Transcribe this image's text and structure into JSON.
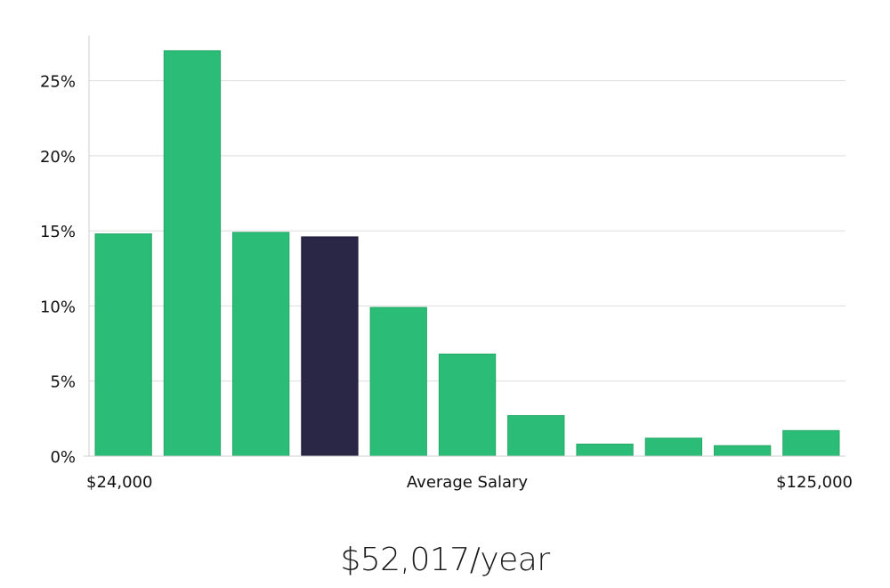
{
  "chart_data": {
    "type": "bar",
    "title": "",
    "xlabel": "Average Salary",
    "ylabel": "",
    "x_start_label": "$24,000",
    "x_end_label": "$125,000",
    "ylim": [
      0,
      28
    ],
    "yticks": [
      0,
      5,
      10,
      15,
      20,
      25
    ],
    "ytick_labels": [
      "0%",
      "5%",
      "10%",
      "15%",
      "20%",
      "25%"
    ],
    "grid": true,
    "values": [
      14.8,
      27.0,
      14.9,
      14.6,
      9.9,
      6.8,
      2.7,
      0.8,
      1.2,
      0.7,
      1.7
    ],
    "highlight_index": 3,
    "colors": {
      "bar": "#2bbd77",
      "bar_stroke": "#24a866",
      "highlight": "#2a2646",
      "highlight_stroke": "#1a1736",
      "grid": "#dddddd",
      "axis": "#cfcfcf"
    }
  },
  "summary": {
    "salary_text": "$52,017/year"
  }
}
